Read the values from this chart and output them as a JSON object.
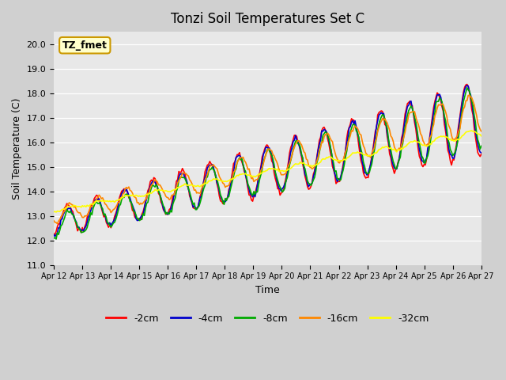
{
  "title": "Tonzi Soil Temperatures Set C",
  "xlabel": "Time",
  "ylabel": "Soil Temperature (C)",
  "ylim": [
    11.0,
    20.5
  ],
  "yticks": [
    11.0,
    12.0,
    13.0,
    14.0,
    15.0,
    16.0,
    17.0,
    18.0,
    19.0,
    20.0
  ],
  "annotation_label": "TZ_fmet",
  "annotation_box_color": "#ffffcc",
  "annotation_box_edge": "#cc9900",
  "legend_entries": [
    "-2cm",
    "-4cm",
    "-8cm",
    "-16cm",
    "-32cm"
  ],
  "line_colors": [
    "#ff0000",
    "#0000cc",
    "#00aa00",
    "#ff8800",
    "#ffff00"
  ],
  "x_tick_labels": [
    "Apr 12",
    "Apr 13",
    "Apr 14",
    "Apr 15",
    "Apr 16",
    "Apr 17",
    "Apr 18",
    "Apr 19",
    "Apr 20",
    "Apr 21",
    "Apr 22",
    "Apr 23",
    "Apr 24",
    "Apr 25",
    "Apr 26",
    "Apr 27"
  ],
  "n_days": 15,
  "pts_per_day": 24
}
